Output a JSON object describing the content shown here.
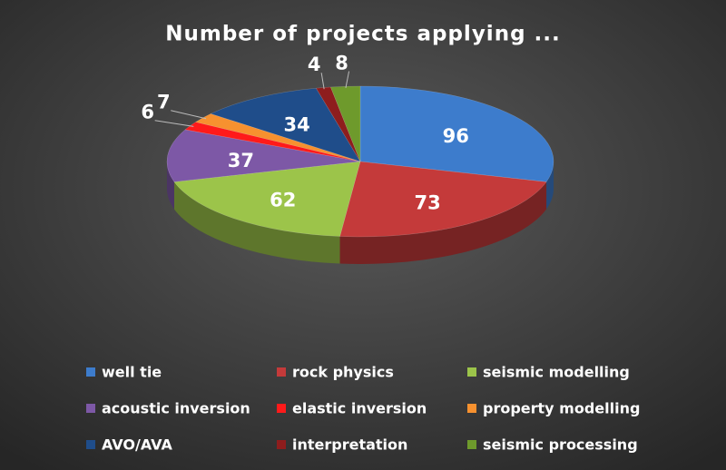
{
  "chart_data": {
    "type": "pie",
    "title": "Number of projects applying ...",
    "categories": [
      "well tie",
      "rock physics",
      "seismic modelling",
      "acoustic inversion",
      "elastic inversion",
      "property modelling",
      "AVO/AVA",
      "interpretation",
      "seismic processing"
    ],
    "values": [
      96,
      73,
      62,
      37,
      6,
      7,
      34,
      4,
      8
    ],
    "colors": [
      "#3d7ccc",
      "#c43a3a",
      "#9cc44a",
      "#7d58a6",
      "#ff1a1a",
      "#f7912f",
      "#1f4d8a",
      "#8e1d1d",
      "#6e9a2c"
    ]
  }
}
